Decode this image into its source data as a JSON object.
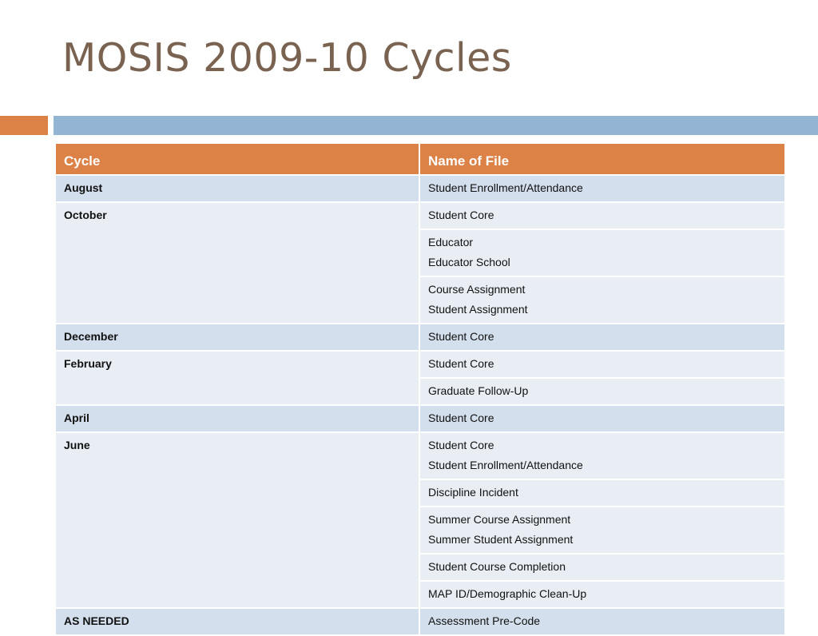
{
  "slide": {
    "title": "MOSIS 2009-10 Cycles"
  },
  "table": {
    "headers": {
      "cycle": "Cycle",
      "file": "Name of File"
    },
    "rows": [
      {
        "cycle": "August",
        "files": [
          [
            "Student Enrollment/Attendance"
          ]
        ]
      },
      {
        "cycle": "October",
        "files": [
          [
            "Student Core"
          ],
          [
            "Educator",
            "Educator School"
          ],
          [
            "Course Assignment",
            "Student Assignment"
          ]
        ]
      },
      {
        "cycle": "December",
        "files": [
          [
            "Student Core"
          ]
        ]
      },
      {
        "cycle": "February",
        "files": [
          [
            "Student Core"
          ],
          [
            "Graduate Follow-Up"
          ]
        ]
      },
      {
        "cycle": "April",
        "files": [
          [
            "Student Core"
          ]
        ]
      },
      {
        "cycle": "June",
        "files": [
          [
            "Student Core",
            "Student Enrollment/Attendance"
          ],
          [
            "Discipline Incident"
          ],
          [
            "Summer Course Assignment",
            "Summer Student Assignment"
          ],
          [
            "Student Course Completion"
          ],
          [
            "MAP ID/Demographic Clean-Up"
          ]
        ]
      },
      {
        "cycle": "AS NEEDED",
        "files": [
          [
            "Assessment Pre-Code"
          ]
        ]
      }
    ]
  },
  "colors": {
    "title": "#7a6251",
    "accent_orange": "#dd8246",
    "accent_blue": "#93b4d3",
    "row_light": "#e9eef5",
    "row_dark": "#d3dfec"
  }
}
